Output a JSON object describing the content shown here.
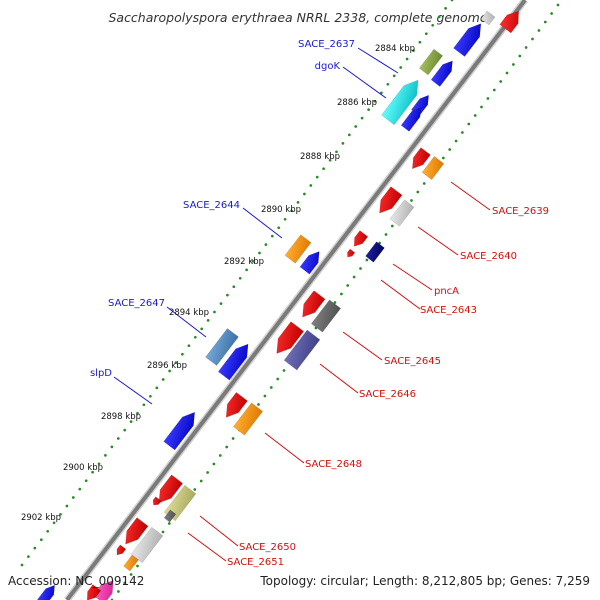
{
  "title": "Saccharopolyspora erythraea NRRL 2338, complete genome",
  "footer": {
    "accession": "Accession: NC_009142",
    "topology": "Topology: circular; Length: 8,212,805 bp; Genes: 7,259"
  },
  "kbp_ticks": [
    "2884 kbp",
    "2886 kbp",
    "2888 kbp",
    "2890 kbp",
    "2892 kbp",
    "2894 kbp",
    "2896 kbp",
    "2898 kbp",
    "2900 kbp",
    "2902 kbp"
  ],
  "labels_forward": [
    "SACE_2637",
    "dgoK",
    "SACE_2644",
    "SACE_2647",
    "slpD"
  ],
  "labels_reverse": [
    "SACE_2639",
    "SACE_2640",
    "pncA",
    "SACE_2643",
    "SACE_2645",
    "SACE_2646",
    "SACE_2648",
    "SACE_2650",
    "SACE_2651"
  ],
  "colors": {
    "forward_label": "#1a1ad0",
    "reverse_label": "#d01010",
    "backbone": "#888888",
    "ticks": "#2a8a2a"
  }
}
